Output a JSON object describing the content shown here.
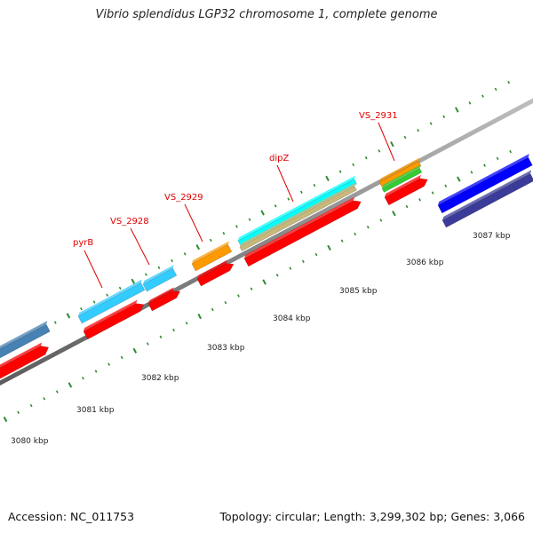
{
  "title": "Vibrio splendidus LGP32 chromosome 1, complete genome",
  "footer": {
    "accession_label": "Accession:",
    "accession": "NC_011753",
    "topology_label": "Topology:",
    "topology": "circular",
    "length_label": "Length:",
    "length": "3,299,302 bp",
    "genes_label": "Genes:",
    "genes": "3,066"
  },
  "colors": {
    "backbone": "#8a8a8a",
    "tick": "#2e8b2e",
    "label": "#e00000",
    "ruler_label": "#222222",
    "cds": "#ff0000",
    "gene_cyan": "#33ccff",
    "gene_orange": "#ff9900",
    "gene_green": "#33cc33",
    "gene_steel": "#4682b4",
    "gene_blue": "#0000ff",
    "gene_slate": "#3b3b99",
    "gene_tan": "#c8b87a",
    "gene_aqua": "#00ffff"
  },
  "ruler": [
    {
      "label": "3080 kbp"
    },
    {
      "label": "3081 kbp"
    },
    {
      "label": "3082 kbp"
    },
    {
      "label": "3083 kbp"
    },
    {
      "label": "3084 kbp"
    },
    {
      "label": "3085 kbp"
    },
    {
      "label": "3086 kbp"
    },
    {
      "label": "3087 kbp"
    }
  ],
  "gene_labels": [
    {
      "name": "pyrB"
    },
    {
      "name": "VS_2928"
    },
    {
      "name": "VS_2929"
    },
    {
      "name": "dipZ"
    },
    {
      "name": "VS_2931"
    }
  ]
}
